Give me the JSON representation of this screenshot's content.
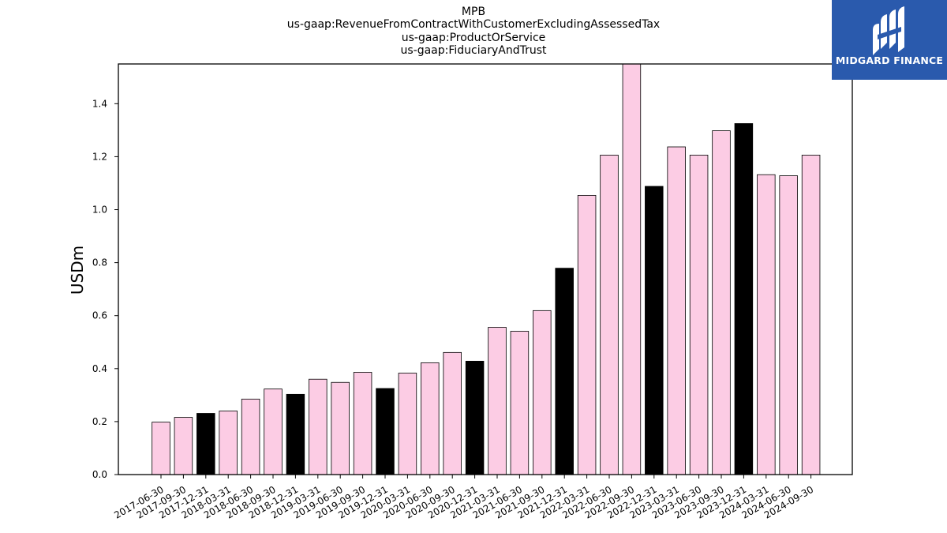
{
  "chart_data": {
    "type": "bar",
    "title_lines": [
      "MPB",
      "us-gaap:RevenueFromContractWithCustomerExcludingAssessedTax",
      "us-gaap:ProductOrService",
      "us-gaap:FiduciaryAndTrust"
    ],
    "ylabel": "USDm",
    "xlabel": "",
    "ylim": [
      0,
      1.55
    ],
    "yticks": [
      "0.0",
      "0.2",
      "0.4",
      "0.6",
      "0.8",
      "1.0",
      "1.2",
      "1.4"
    ],
    "categories": [
      "2017-06-30",
      "2017-09-30",
      "2017-12-31",
      "2018-03-31",
      "2018-06-30",
      "2018-09-30",
      "2018-12-31",
      "2019-03-31",
      "2019-06-30",
      "2019-09-30",
      "2019-12-31",
      "2020-03-31",
      "2020-06-30",
      "2020-09-30",
      "2020-12-31",
      "2021-03-31",
      "2021-06-30",
      "2021-09-30",
      "2021-12-31",
      "2022-03-31",
      "2022-06-30",
      "2022-09-30",
      "2022-12-31",
      "2023-03-31",
      "2023-06-30",
      "2023-09-30",
      "2023-12-31",
      "2024-03-31",
      "2024-06-30",
      "2024-09-30"
    ],
    "values": [
      0.198,
      0.216,
      0.231,
      0.24,
      0.285,
      0.323,
      0.303,
      0.36,
      0.348,
      0.386,
      0.325,
      0.383,
      0.422,
      0.461,
      0.428,
      0.556,
      0.541,
      0.619,
      0.779,
      1.054,
      1.206,
      1.56,
      1.088,
      1.237,
      1.206,
      1.298,
      1.325,
      1.132,
      1.128,
      1.206
    ],
    "highlight_year_end": true,
    "colors": {
      "quarter": "#fccce4",
      "year_end": "#000000",
      "edge": "#000000"
    },
    "grid": false,
    "legend": "none"
  },
  "logo": {
    "text": "MIDGARD FINANCE",
    "background": "#2a5aad",
    "icon": "midgard-logo-icon"
  }
}
